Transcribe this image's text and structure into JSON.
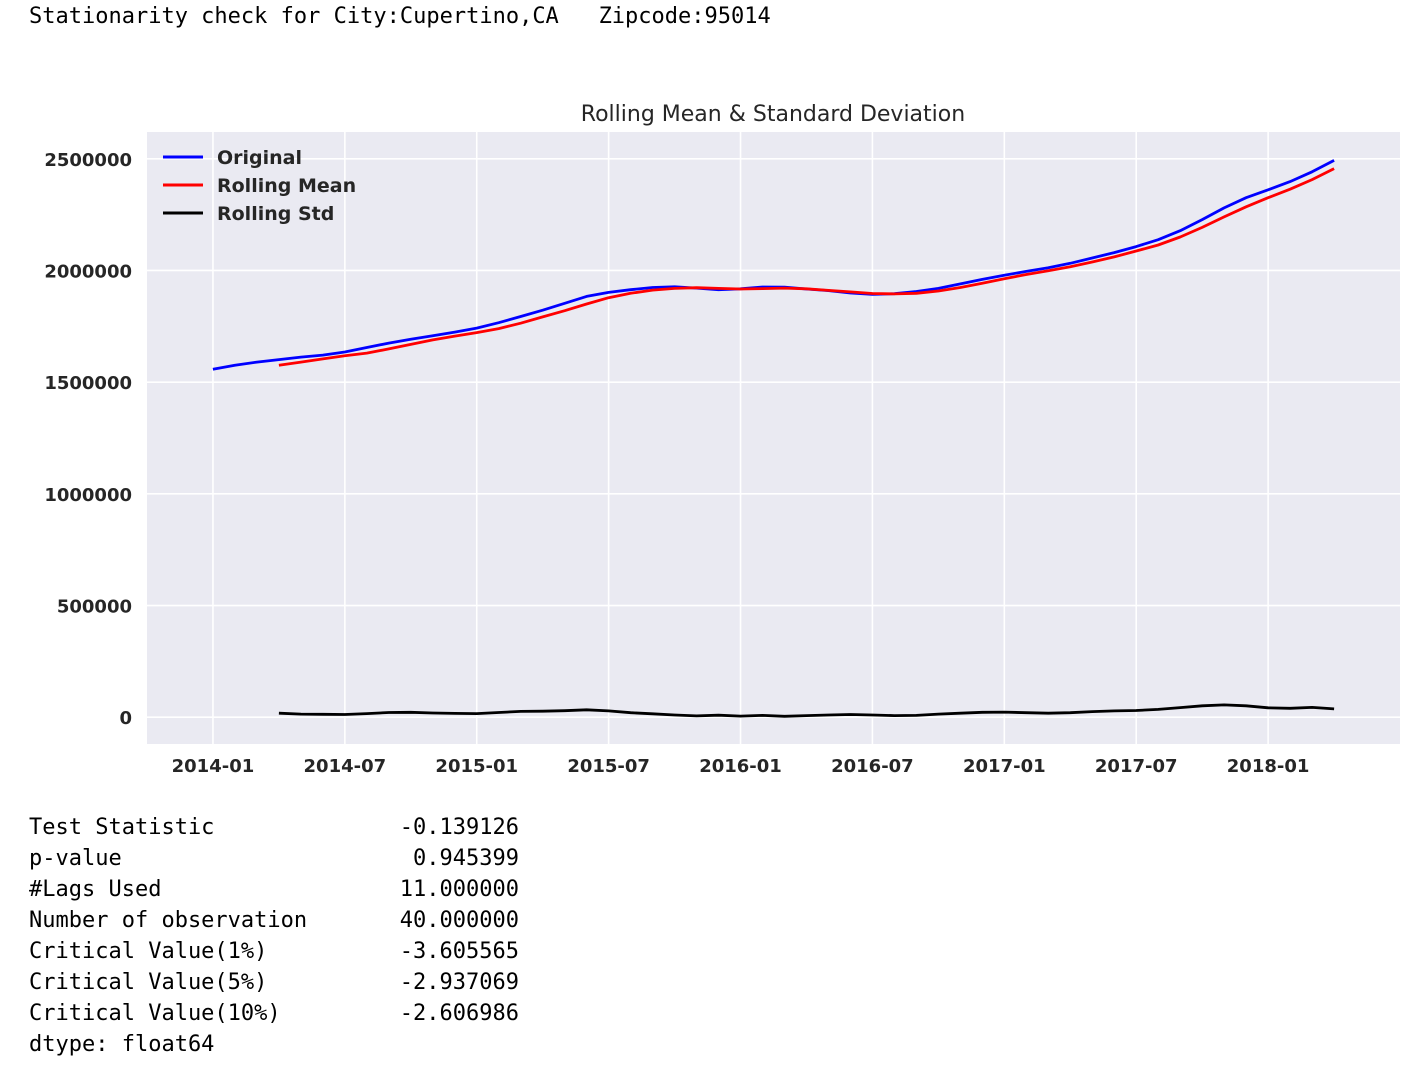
{
  "header": {
    "city_label": "Stationarity check for City:Cupertino,CA",
    "zip_label": "Zipcode:95014"
  },
  "chart_data": {
    "type": "line",
    "title": "Rolling Mean & Standard Deviation",
    "xlabel": "",
    "ylabel": "",
    "x_tick_labels": [
      "2014-01",
      "2014-07",
      "2015-01",
      "2015-07",
      "2016-01",
      "2016-07",
      "2017-01",
      "2017-07",
      "2018-01"
    ],
    "y_tick_labels": [
      "0",
      "500000",
      "1000000",
      "1500000",
      "2000000",
      "2500000"
    ],
    "x": [
      "2014-01",
      "2014-02",
      "2014-03",
      "2014-04",
      "2014-05",
      "2014-06",
      "2014-07",
      "2014-08",
      "2014-09",
      "2014-10",
      "2014-11",
      "2014-12",
      "2015-01",
      "2015-02",
      "2015-03",
      "2015-04",
      "2015-05",
      "2015-06",
      "2015-07",
      "2015-08",
      "2015-09",
      "2015-10",
      "2015-11",
      "2015-12",
      "2016-01",
      "2016-02",
      "2016-03",
      "2016-04",
      "2016-05",
      "2016-06",
      "2016-07",
      "2016-08",
      "2016-09",
      "2016-10",
      "2016-11",
      "2016-12",
      "2017-01",
      "2017-02",
      "2017-03",
      "2017-04",
      "2017-05",
      "2017-06",
      "2017-07",
      "2017-08",
      "2017-09",
      "2017-10",
      "2017-11",
      "2017-12",
      "2018-01",
      "2018-02",
      "2018-03",
      "2018-04"
    ],
    "series": [
      {
        "name": "Original",
        "color": "#0000ff",
        "values": [
          1558000,
          1576000,
          1590000,
          1601000,
          1612000,
          1621000,
          1635000,
          1655000,
          1675000,
          1692000,
          1708000,
          1724000,
          1742000,
          1766000,
          1794000,
          1822000,
          1853000,
          1884000,
          1902000,
          1914000,
          1924000,
          1927000,
          1921000,
          1914000,
          1918000,
          1926000,
          1925000,
          1917000,
          1910000,
          1899000,
          1893000,
          1896000,
          1906000,
          1920000,
          1940000,
          1960000,
          1979000,
          1996000,
          2012000,
          2032000,
          2056000,
          2080000,
          2107000,
          2138000,
          2178000,
          2228000,
          2280000,
          2326000,
          2361000,
          2398000,
          2442000,
          2493000
        ]
      },
      {
        "name": "Rolling Mean",
        "color": "#ff0000",
        "values": [
          null,
          null,
          null,
          1576000,
          1590000,
          1604000,
          1618000,
          1630000,
          1649000,
          1669000,
          1689000,
          1706000,
          1722000,
          1740000,
          1764000,
          1792000,
          1820000,
          1850000,
          1878000,
          1898000,
          1912000,
          1920000,
          1923000,
          1920000,
          1917000,
          1919000,
          1921000,
          1918000,
          1911000,
          1904000,
          1897000,
          1895000,
          1898000,
          1908000,
          1924000,
          1943000,
          1963000,
          1982000,
          1999000,
          2017000,
          2038000,
          2061000,
          2087000,
          2114000,
          2150000,
          2193000,
          2240000,
          2285000,
          2326000,
          2364000,
          2407000,
          2456000
        ]
      },
      {
        "name": "Rolling Std",
        "color": "#000000",
        "values": [
          null,
          null,
          null,
          18000,
          14000,
          13000,
          12000,
          16000,
          21000,
          22000,
          19000,
          17000,
          16000,
          21000,
          26000,
          27000,
          29000,
          33000,
          28000,
          20000,
          15000,
          10000,
          6000,
          9000,
          5000,
          8000,
          4000,
          7000,
          10000,
          12000,
          10000,
          7000,
          8000,
          14000,
          18000,
          22000,
          23000,
          20000,
          18000,
          20000,
          25000,
          28000,
          30000,
          35000,
          43000,
          51000,
          55000,
          51000,
          42000,
          40000,
          44000,
          37000
        ]
      }
    ],
    "xlim": [
      "2013-10",
      "2018-07"
    ],
    "ylim": [
      -120000,
      2620000
    ],
    "grid": true,
    "legend": "top-left"
  },
  "results": {
    "rows": [
      {
        "label": "Test Statistic",
        "value": "-0.139126"
      },
      {
        "label": "p-value",
        "value": "0.945399"
      },
      {
        "label": "#Lags Used",
        "value": "11.000000"
      },
      {
        "label": "Number of observation",
        "value": "40.000000"
      },
      {
        "label": "Critical Value(1%)",
        "value": "-3.605565"
      },
      {
        "label": "Critical Value(5%)",
        "value": "-2.937069"
      },
      {
        "label": "Critical Value(10%)",
        "value": "-2.606986"
      }
    ],
    "dtype": "dtype: float64"
  }
}
